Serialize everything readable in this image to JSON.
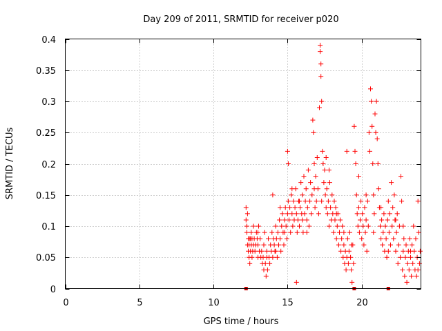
{
  "chart_data": {
    "type": "scatter",
    "title": "Day 209 of 2011, SRMTID for receiver p020",
    "xlabel": "GPS time / hours",
    "ylabel": "SRMTID / TECUs",
    "xlim": [
      0,
      24
    ],
    "ylim": [
      0,
      0.4
    ],
    "x_ticks": [
      0,
      5,
      10,
      15,
      20
    ],
    "y_ticks": [
      0,
      0.05,
      0.1,
      0.15,
      0.2,
      0.25,
      0.3,
      0.35,
      0.4
    ],
    "x_tick_labels": [
      "0",
      "5",
      "10",
      "15",
      "20"
    ],
    "y_tick_labels": [
      "0",
      "0.05",
      "0.1",
      "0.15",
      "0.2",
      "0.25",
      "0.3",
      "0.35",
      "0.4"
    ],
    "grid": true,
    "marker": "plus",
    "color": "#ff0000",
    "series": [
      {
        "name": "SRMTID",
        "points": [
          [
            12.2,
            0.13
          ],
          [
            12.2,
            0.11
          ],
          [
            12.25,
            0.09
          ],
          [
            12.25,
            0.1
          ],
          [
            12.3,
            0.07
          ],
          [
            12.3,
            0.12
          ],
          [
            12.35,
            0.06
          ],
          [
            12.35,
            0.08
          ],
          [
            12.4,
            0.05
          ],
          [
            12.4,
            0.07
          ],
          [
            12.45,
            0.04
          ],
          [
            12.45,
            0.08
          ],
          [
            12.5,
            0.06
          ],
          [
            12.55,
            0.09
          ],
          [
            12.55,
            0.07
          ],
          [
            12.6,
            0.08
          ],
          [
            12.6,
            0.05
          ],
          [
            12.65,
            0.06
          ],
          [
            12.7,
            0.07
          ],
          [
            12.7,
            0.1
          ],
          [
            12.75,
            0.08
          ],
          [
            12.8,
            0.06
          ],
          [
            12.85,
            0.07
          ],
          [
            12.9,
            0.09
          ],
          [
            12.95,
            0.08
          ],
          [
            13.0,
            0.07
          ],
          [
            13.0,
            0.05
          ],
          [
            13.05,
            0.1
          ],
          [
            13.1,
            0.06
          ],
          [
            13.15,
            0.08
          ],
          [
            13.2,
            0.05
          ],
          [
            13.25,
            0.06
          ],
          [
            13.3,
            0.04
          ],
          [
            13.35,
            0.05
          ],
          [
            13.4,
            0.07
          ],
          [
            13.4,
            0.03
          ],
          [
            13.45,
            0.09
          ],
          [
            13.5,
            0.04
          ],
          [
            13.55,
            0.02
          ],
          [
            13.6,
            0.06
          ],
          [
            13.65,
            0.03
          ],
          [
            13.7,
            0.08
          ],
          [
            13.75,
            0.05
          ],
          [
            13.8,
            0.04
          ],
          [
            13.85,
            0.07
          ],
          [
            13.9,
            0.06
          ],
          [
            13.95,
            0.09
          ],
          [
            14.0,
            0.05
          ],
          [
            14.0,
            0.15
          ],
          [
            14.05,
            0.08
          ],
          [
            14.1,
            0.07
          ],
          [
            14.15,
            0.06
          ],
          [
            14.2,
            0.1
          ],
          [
            14.25,
            0.08
          ],
          [
            14.3,
            0.05
          ],
          [
            14.35,
            0.09
          ],
          [
            14.4,
            0.07
          ],
          [
            14.45,
            0.11
          ],
          [
            14.5,
            0.08
          ],
          [
            14.55,
            0.06
          ],
          [
            14.6,
            0.1
          ],
          [
            14.65,
            0.12
          ],
          [
            14.7,
            0.09
          ],
          [
            14.75,
            0.07
          ],
          [
            14.8,
            0.11
          ],
          [
            14.85,
            0.13
          ],
          [
            14.9,
            0.1
          ],
          [
            14.95,
            0.08
          ],
          [
            15.0,
            0.22
          ],
          [
            15.0,
            0.12
          ],
          [
            15.05,
            0.2
          ],
          [
            15.05,
            0.14
          ],
          [
            15.1,
            0.11
          ],
          [
            15.15,
            0.13
          ],
          [
            15.2,
            0.09
          ],
          [
            15.25,
            0.15
          ],
          [
            15.3,
            0.12
          ],
          [
            15.35,
            0.1
          ],
          [
            15.4,
            0.14
          ],
          [
            15.45,
            0.11
          ],
          [
            15.5,
            0.13
          ],
          [
            15.55,
            0.16
          ],
          [
            15.6,
            0.12
          ],
          [
            15.65,
            0.09
          ],
          [
            15.7,
            0.11
          ],
          [
            15.75,
            0.14
          ],
          [
            15.8,
            0.1
          ],
          [
            15.85,
            0.13
          ],
          [
            15.9,
            0.17
          ],
          [
            15.95,
            0.12
          ],
          [
            16.0,
            0.15
          ],
          [
            16.05,
            0.09
          ],
          [
            16.1,
            0.18
          ],
          [
            16.15,
            0.12
          ],
          [
            16.2,
            0.14
          ],
          [
            16.25,
            0.16
          ],
          [
            16.3,
            0.11
          ],
          [
            16.35,
            0.13
          ],
          [
            16.4,
            0.19
          ],
          [
            16.45,
            0.1
          ],
          [
            16.5,
            0.14
          ],
          [
            16.55,
            0.17
          ],
          [
            16.6,
            0.12
          ],
          [
            16.65,
            0.15
          ],
          [
            16.7,
            0.27
          ],
          [
            16.75,
            0.25
          ],
          [
            16.8,
            0.16
          ],
          [
            16.85,
            0.13
          ],
          [
            16.9,
            0.18
          ],
          [
            16.95,
            0.14
          ],
          [
            17.0,
            0.21
          ],
          [
            17.05,
            0.16
          ],
          [
            17.1,
            0.12
          ],
          [
            17.15,
            0.29
          ],
          [
            17.2,
            0.39
          ],
          [
            17.2,
            0.38
          ],
          [
            17.25,
            0.36
          ],
          [
            17.25,
            0.34
          ],
          [
            17.3,
            0.3
          ],
          [
            17.35,
            0.22
          ],
          [
            17.4,
            0.2
          ],
          [
            17.45,
            0.17
          ],
          [
            17.5,
            0.19
          ],
          [
            17.55,
            0.15
          ],
          [
            17.6,
            0.13
          ],
          [
            17.65,
            0.16
          ],
          [
            17.7,
            0.12
          ],
          [
            17.75,
            0.14
          ],
          [
            17.8,
            0.1
          ],
          [
            17.85,
            0.17
          ],
          [
            17.9,
            0.13
          ],
          [
            17.95,
            0.11
          ],
          [
            18.0,
            0.15
          ],
          [
            18.05,
            0.12
          ],
          [
            18.1,
            0.09
          ],
          [
            18.15,
            0.14
          ],
          [
            18.2,
            0.11
          ],
          [
            18.25,
            0.13
          ],
          [
            18.3,
            0.08
          ],
          [
            18.35,
            0.1
          ],
          [
            18.4,
            0.12
          ],
          [
            18.45,
            0.07
          ],
          [
            18.5,
            0.09
          ],
          [
            18.55,
            0.11
          ],
          [
            18.6,
            0.06
          ],
          [
            18.65,
            0.08
          ],
          [
            18.7,
            0.1
          ],
          [
            18.75,
            0.05
          ],
          [
            18.8,
            0.07
          ],
          [
            18.85,
            0.04
          ],
          [
            18.9,
            0.06
          ],
          [
            18.95,
            0.03
          ],
          [
            19.0,
            0.05
          ],
          [
            19.05,
            0.08
          ],
          [
            19.1,
            0.04
          ],
          [
            19.15,
            0.06
          ],
          [
            19.2,
            0.09
          ],
          [
            19.25,
            0.05
          ],
          [
            19.3,
            0.03
          ],
          [
            19.35,
            0.01
          ],
          [
            19.4,
            0.07
          ],
          [
            19.45,
            0.04
          ],
          [
            19.5,
            0.26
          ],
          [
            19.55,
            0.22
          ],
          [
            19.6,
            0.2
          ],
          [
            19.65,
            0.15
          ],
          [
            19.7,
            0.12
          ],
          [
            19.75,
            0.1
          ],
          [
            19.8,
            0.13
          ],
          [
            19.85,
            0.09
          ],
          [
            19.9,
            0.11
          ],
          [
            19.95,
            0.14
          ],
          [
            20.0,
            0.08
          ],
          [
            20.05,
            0.12
          ],
          [
            20.1,
            0.1
          ],
          [
            20.15,
            0.07
          ],
          [
            20.2,
            0.13
          ],
          [
            20.25,
            0.09
          ],
          [
            20.3,
            0.11
          ],
          [
            20.35,
            0.06
          ],
          [
            20.4,
            0.14
          ],
          [
            20.45,
            0.1
          ],
          [
            20.5,
            0.25
          ],
          [
            20.55,
            0.22
          ],
          [
            20.6,
            0.32
          ],
          [
            20.65,
            0.3
          ],
          [
            20.7,
            0.26
          ],
          [
            20.75,
            0.2
          ],
          [
            20.8,
            0.15
          ],
          [
            20.85,
            0.12
          ],
          [
            20.9,
            0.28
          ],
          [
            20.95,
            0.25
          ],
          [
            21.0,
            0.3
          ],
          [
            21.05,
            0.24
          ],
          [
            21.1,
            0.2
          ],
          [
            21.15,
            0.16
          ],
          [
            21.2,
            0.13
          ],
          [
            21.25,
            0.1
          ],
          [
            21.3,
            0.08
          ],
          [
            21.35,
            0.11
          ],
          [
            21.4,
            0.07
          ],
          [
            21.45,
            0.09
          ],
          [
            21.5,
            0.12
          ],
          [
            21.55,
            0.06
          ],
          [
            21.6,
            0.1
          ],
          [
            21.65,
            0.08
          ],
          [
            21.7,
            0.05
          ],
          [
            21.75,
            0.11
          ],
          [
            21.8,
            0.14
          ],
          [
            21.85,
            0.09
          ],
          [
            21.9,
            0.12
          ],
          [
            21.95,
            0.07
          ],
          [
            22.0,
            0.17
          ],
          [
            22.05,
            0.1
          ],
          [
            22.1,
            0.13
          ],
          [
            22.15,
            0.08
          ],
          [
            22.2,
            0.15
          ],
          [
            22.25,
            0.11
          ],
          [
            22.3,
            0.06
          ],
          [
            22.35,
            0.09
          ],
          [
            22.4,
            0.12
          ],
          [
            22.45,
            0.04
          ],
          [
            22.5,
            0.07
          ],
          [
            22.55,
            0.1
          ],
          [
            22.6,
            0.05
          ],
          [
            22.65,
            0.18
          ],
          [
            22.7,
            0.14
          ],
          [
            22.75,
            0.03
          ],
          [
            22.8,
            0.06
          ],
          [
            22.85,
            0.08
          ],
          [
            22.9,
            0.02
          ],
          [
            22.95,
            0.05
          ],
          [
            23.0,
            0.07
          ],
          [
            23.05,
            0.01
          ],
          [
            23.1,
            0.04
          ],
          [
            23.15,
            0.06
          ],
          [
            23.2,
            0.03
          ],
          [
            23.25,
            0.08
          ],
          [
            23.3,
            0.05
          ],
          [
            23.35,
            0.02
          ],
          [
            23.4,
            0.07
          ],
          [
            23.45,
            0.04
          ],
          [
            23.5,
            0.1
          ],
          [
            23.55,
            0.06
          ],
          [
            23.6,
            0.03
          ],
          [
            23.65,
            0.08
          ],
          [
            23.7,
            0.02
          ],
          [
            23.75,
            0.05
          ],
          [
            23.8,
            0.14
          ],
          [
            23.85,
            0.09
          ],
          [
            23.9,
            0.04
          ],
          [
            23.95,
            0.06
          ],
          [
            12.5,
            0.08
          ],
          [
            13.0,
            0.09
          ],
          [
            13.6,
            0.05
          ],
          [
            14.2,
            0.06
          ],
          [
            14.8,
            0.09
          ],
          [
            15.3,
            0.16
          ],
          [
            15.8,
            0.14
          ],
          [
            16.3,
            0.09
          ],
          [
            16.8,
            0.2
          ],
          [
            17.3,
            0.14
          ],
          [
            17.8,
            0.19
          ],
          [
            18.3,
            0.12
          ],
          [
            18.8,
            0.09
          ],
          [
            19.3,
            0.07
          ],
          [
            19.8,
            0.18
          ],
          [
            20.3,
            0.15
          ],
          [
            20.8,
            0.09
          ],
          [
            21.3,
            0.13
          ],
          [
            21.8,
            0.06
          ],
          [
            22.3,
            0.11
          ],
          [
            22.8,
            0.1
          ],
          [
            23.3,
            0.06
          ],
          [
            23.8,
            0.03
          ],
          [
            15.6,
            0.01
          ],
          [
            19.0,
            0.22
          ],
          [
            17.6,
            0.21
          ],
          [
            16.0,
            0.11
          ],
          [
            14.5,
            0.13
          ]
        ]
      }
    ],
    "zero_markers": [
      12.2,
      19.5,
      21.8
    ]
  }
}
